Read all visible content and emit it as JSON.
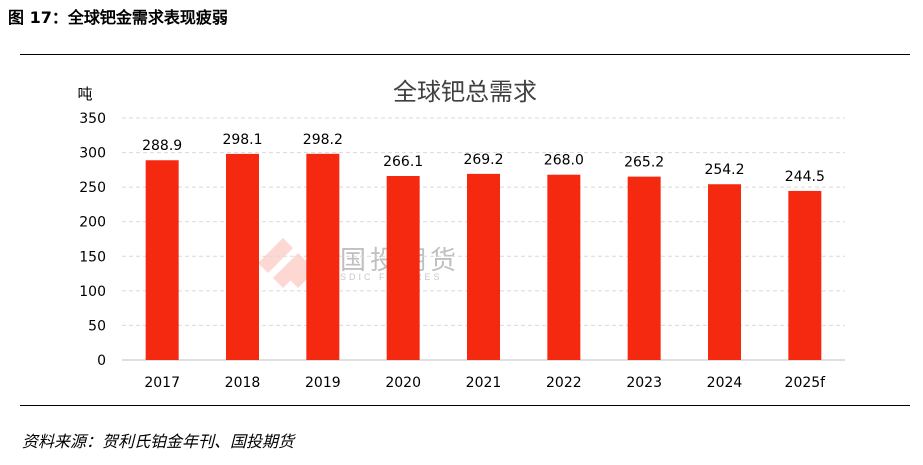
{
  "figure_label": "图 17：全球钯金需求表现疲弱",
  "source_note": "资料来源：贺利氏铂金年刊、国投期货",
  "watermark": {
    "text": "国投期货",
    "subtext": "SDIC FUTURES"
  },
  "colors": {
    "bar": "#f5290f",
    "grid": "#d9d9d9",
    "axis": "#bfbfbf"
  },
  "chart_data": {
    "type": "bar",
    "title": "全球钯总需求",
    "ylabel": "吨",
    "xlabel": "",
    "categories": [
      "2017",
      "2018",
      "2019",
      "2020",
      "2021",
      "2022",
      "2023",
      "2024",
      "2025f"
    ],
    "values": [
      288.9,
      298.1,
      298.2,
      266.1,
      269.2,
      268.0,
      265.2,
      254.2,
      244.5
    ],
    "value_labels": [
      "288.9",
      "298.1",
      "298.2",
      "266.1",
      "269.2",
      "268.0",
      "265.2",
      "254.2",
      "244.5"
    ],
    "ylim": [
      0,
      350
    ],
    "yticks": [
      0,
      50,
      100,
      150,
      200,
      250,
      300,
      350
    ],
    "grid": true,
    "legend": "none"
  }
}
